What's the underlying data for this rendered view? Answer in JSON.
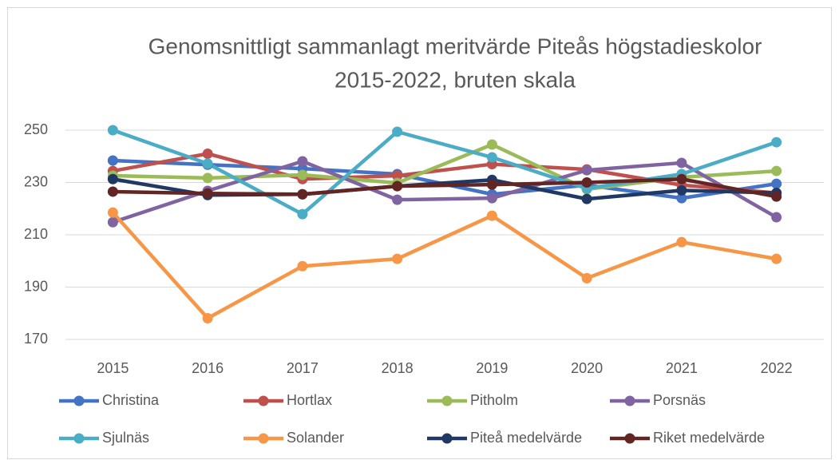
{
  "chart_data": {
    "type": "line",
    "title": [
      "Genomsnittligt sammanlagt meritvärde Piteås högstadieskolor",
      "2015-2022, bruten skala"
    ],
    "categories": [
      "2015",
      "2016",
      "2017",
      "2018",
      "2019",
      "2020",
      "2021",
      "2022"
    ],
    "ylim": [
      170,
      250
    ],
    "yticks": [
      170,
      190,
      210,
      230,
      250
    ],
    "grid": true,
    "legend": "bottom",
    "series": [
      {
        "name": "Christina",
        "color": "#4472c4",
        "values": [
          238.4,
          236.8,
          235.3,
          233.2,
          225.5,
          229,
          224,
          229.5
        ]
      },
      {
        "name": "Hortlax",
        "color": "#c0504d",
        "values": [
          234.4,
          241,
          231.3,
          232.6,
          237,
          235,
          229,
          226
        ]
      },
      {
        "name": "Pitholm",
        "color": "#9bbb59",
        "values": [
          232.6,
          231.7,
          232.9,
          229.8,
          244.5,
          227.4,
          232,
          234.4
        ]
      },
      {
        "name": "Porsnäs",
        "color": "#8064a2",
        "values": [
          214.8,
          226.8,
          238.1,
          223.4,
          224,
          234.7,
          237.5,
          216.7
        ]
      },
      {
        "name": "Sjulnäs",
        "color": "#4bacc6",
        "values": [
          250,
          237.2,
          217.9,
          249.4,
          239.6,
          227.7,
          233.2,
          245.4
        ]
      },
      {
        "name": "Solander",
        "color": "#f79646",
        "values": [
          218.5,
          178.1,
          198,
          200.8,
          217.3,
          193.4,
          207.2,
          200.8
        ]
      },
      {
        "name": "Piteå medelvärde",
        "color": "#1f3864",
        "values": [
          231.3,
          225.2,
          225.5,
          228.6,
          231,
          223.7,
          227,
          226
        ]
      },
      {
        "name": "Riket medelvärde",
        "color": "#632523",
        "values": [
          226.5,
          225.8,
          225.5,
          228.6,
          229.2,
          230,
          231.3,
          224.6
        ]
      }
    ]
  }
}
